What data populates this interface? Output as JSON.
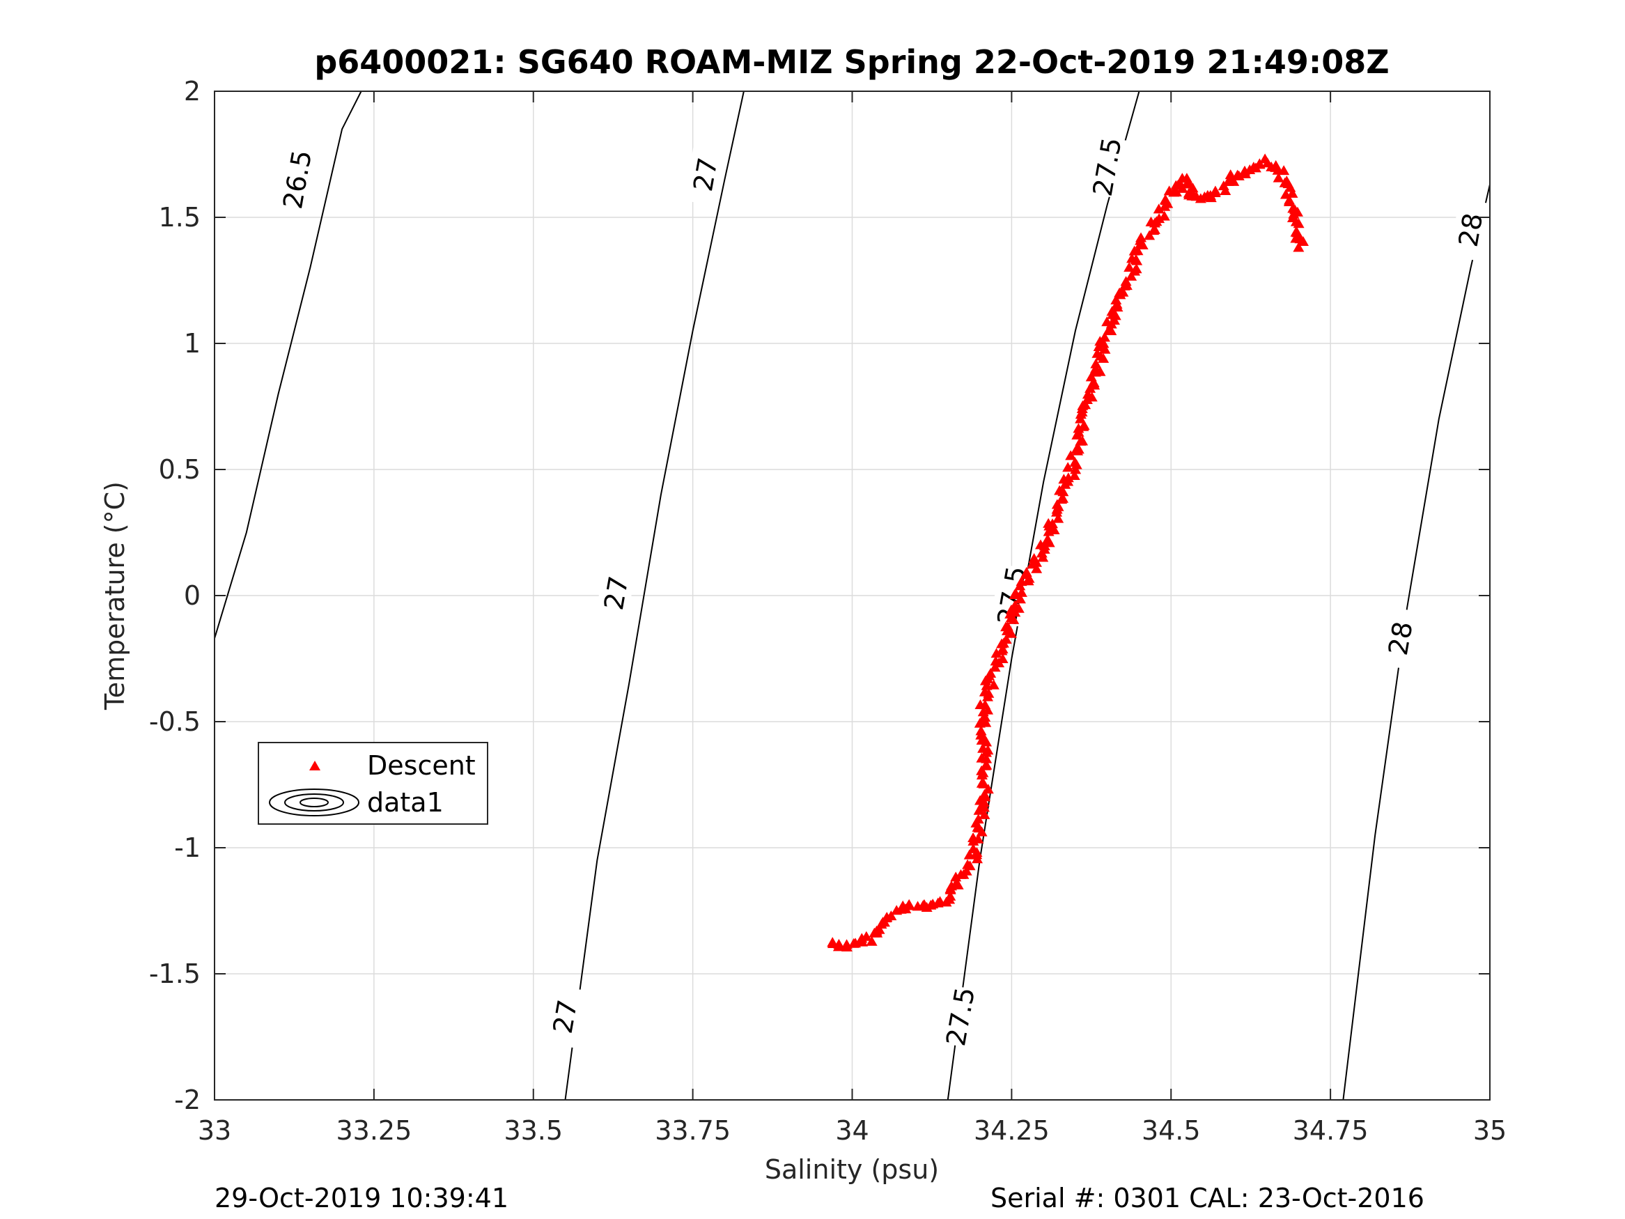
{
  "chart_data": {
    "type": "scatter",
    "title": "p6400021: SG640 ROAM-MIZ Spring 22-Oct-2019 21:49:08Z",
    "xlabel": "Salinity (psu)",
    "ylabel": "Temperature (°C)",
    "xlim": [
      33,
      35
    ],
    "ylim": [
      -2,
      2
    ],
    "xticks": [
      33,
      33.25,
      33.5,
      33.75,
      34,
      34.25,
      34.5,
      34.75,
      35
    ],
    "xtick_labels": [
      "33",
      "33.25",
      "33.5",
      "33.75",
      "34",
      "34.25",
      "34.5",
      "34.75",
      "35"
    ],
    "yticks": [
      -2,
      -1.5,
      -1,
      -0.5,
      0,
      0.5,
      1,
      1.5,
      2
    ],
    "ytick_labels": [
      "-2",
      "-1.5",
      "-1",
      "-0.5",
      "0",
      "0.5",
      "1",
      "1.5",
      "2"
    ],
    "grid": true,
    "legend": {
      "placement": "middle-left",
      "entries": [
        {
          "label": "Descent",
          "marker": "triangle",
          "color": "#ff0000"
        },
        {
          "label": "data1",
          "marker": "contour",
          "color": "#000000"
        }
      ]
    },
    "contours": [
      {
        "level": "26.5",
        "points": [
          [
            33.0,
            -0.17
          ],
          [
            33.05,
            0.25
          ],
          [
            33.1,
            0.8
          ],
          [
            33.15,
            1.3
          ],
          [
            33.2,
            1.85
          ],
          [
            33.23,
            2.0
          ]
        ]
      },
      {
        "level": "27",
        "points": [
          [
            33.55,
            -2.0
          ],
          [
            33.6,
            -1.05
          ],
          [
            33.65,
            -0.35
          ],
          [
            33.7,
            0.4
          ],
          [
            33.75,
            1.05
          ],
          [
            33.8,
            1.65
          ],
          [
            33.83,
            2.0
          ]
        ]
      },
      {
        "level": "27.5",
        "points": [
          [
            34.15,
            -2.0
          ],
          [
            34.2,
            -1.05
          ],
          [
            34.25,
            -0.25
          ],
          [
            34.3,
            0.45
          ],
          [
            34.35,
            1.05
          ],
          [
            34.4,
            1.55
          ],
          [
            34.45,
            2.0
          ]
        ]
      },
      {
        "level": "28",
        "points": [
          [
            34.77,
            -2.0
          ],
          [
            34.82,
            -0.95
          ],
          [
            34.87,
            -0.05
          ],
          [
            34.92,
            0.7
          ],
          [
            34.97,
            1.3
          ],
          [
            35.0,
            1.63
          ]
        ]
      }
    ],
    "contour_labels": [
      {
        "text": "26.5",
        "s": 33.13,
        "t": 1.65
      },
      {
        "text": "27",
        "s": 33.77,
        "t": 1.67
      },
      {
        "text": "27",
        "s": 33.63,
        "t": 0.01
      },
      {
        "text": "27",
        "s": 33.55,
        "t": -1.67
      },
      {
        "text": "27.5",
        "s": 34.4,
        "t": 1.7
      },
      {
        "text": "27.5",
        "s": 34.25,
        "t": 0.0
      },
      {
        "text": "27.5",
        "s": 34.17,
        "t": -1.67
      },
      {
        "text": "28",
        "s": 34.97,
        "t": 1.45
      },
      {
        "text": "28",
        "s": 34.86,
        "t": -0.17
      }
    ],
    "series": [
      {
        "name": "Descent",
        "color": "#ff0000",
        "marker": "triangle",
        "path": [
          [
            33.97,
            -1.38
          ],
          [
            34.0,
            -1.39
          ],
          [
            34.02,
            -1.37
          ],
          [
            34.04,
            -1.33
          ],
          [
            34.06,
            -1.27
          ],
          [
            34.08,
            -1.24
          ],
          [
            34.1,
            -1.23
          ],
          [
            34.13,
            -1.23
          ],
          [
            34.15,
            -1.19
          ],
          [
            34.17,
            -1.12
          ],
          [
            34.19,
            -1.05
          ],
          [
            34.2,
            -0.92
          ],
          [
            34.21,
            -0.78
          ],
          [
            34.21,
            -0.65
          ],
          [
            34.2,
            -0.53
          ],
          [
            34.21,
            -0.41
          ],
          [
            34.22,
            -0.3
          ],
          [
            34.24,
            -0.2
          ],
          [
            34.25,
            -0.08
          ],
          [
            34.27,
            0.06
          ],
          [
            34.3,
            0.18
          ],
          [
            34.32,
            0.32
          ],
          [
            34.34,
            0.47
          ],
          [
            34.36,
            0.63
          ],
          [
            34.37,
            0.79
          ],
          [
            34.39,
            0.93
          ],
          [
            34.4,
            1.07
          ],
          [
            34.42,
            1.17
          ],
          [
            34.44,
            1.29
          ],
          [
            34.46,
            1.42
          ],
          [
            34.48,
            1.5
          ],
          [
            34.5,
            1.6
          ],
          [
            34.52,
            1.66
          ],
          [
            34.53,
            1.58
          ],
          [
            34.56,
            1.57
          ],
          [
            34.6,
            1.66
          ],
          [
            34.64,
            1.72
          ],
          [
            34.67,
            1.69
          ],
          [
            34.69,
            1.57
          ],
          [
            34.7,
            1.45
          ],
          [
            34.7,
            1.38
          ]
        ]
      }
    ]
  },
  "footer": {
    "left": "29-Oct-2019 10:39:41",
    "right": "Serial #: 0301  CAL: 23-Oct-2016"
  }
}
